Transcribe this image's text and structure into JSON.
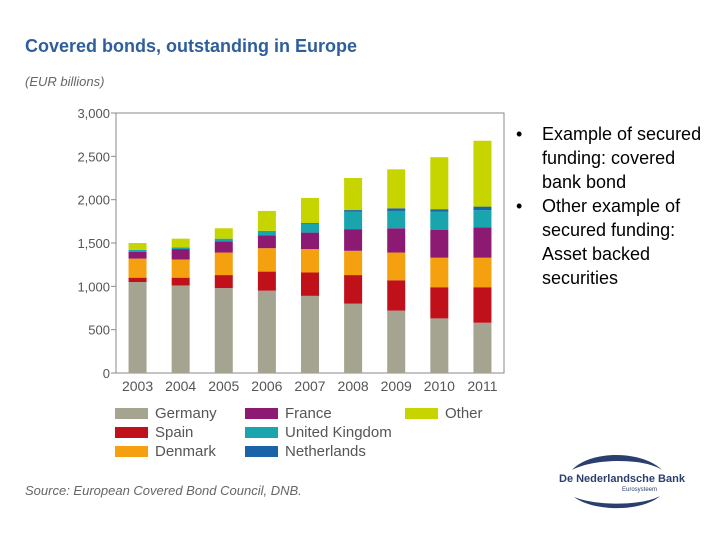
{
  "chart_data": {
    "type": "stacked-bar",
    "title": "Covered bonds, outstanding in Europe",
    "unit_label": "(EUR billions)",
    "categories": [
      "2003",
      "2004",
      "2005",
      "2006",
      "2007",
      "2008",
      "2009",
      "2010",
      "2011"
    ],
    "y_ticks": [
      "0",
      "500",
      "1,000",
      "1,500",
      "2,000",
      "2,500",
      "3,000"
    ],
    "ylim": [
      0,
      3000
    ],
    "series": [
      {
        "name": "Germany",
        "color": "#a5a491",
        "values": [
          1050,
          1010,
          980,
          950,
          890,
          800,
          720,
          630,
          580
        ]
      },
      {
        "name": "Spain",
        "color": "#c0111b",
        "values": [
          50,
          90,
          150,
          220,
          270,
          330,
          350,
          360,
          410
        ]
      },
      {
        "name": "Denmark",
        "color": "#f5a00e",
        "values": [
          220,
          210,
          260,
          270,
          270,
          280,
          320,
          340,
          340
        ]
      },
      {
        "name": "France",
        "color": "#8c1a73",
        "values": [
          80,
          120,
          130,
          150,
          190,
          250,
          280,
          320,
          350
        ]
      },
      {
        "name": "United Kingdom",
        "color": "#18a5ad",
        "values": [
          20,
          20,
          30,
          50,
          100,
          200,
          200,
          210,
          200
        ]
      },
      {
        "name": "Netherlands",
        "color": "#1a63a8",
        "values": [
          0,
          0,
          0,
          0,
          10,
          20,
          30,
          30,
          40
        ]
      },
      {
        "name": "Other",
        "color": "#c6d400",
        "values": [
          80,
          100,
          120,
          230,
          290,
          370,
          450,
          600,
          760
        ]
      }
    ],
    "legend_position": "bottom"
  },
  "source": "Source: European Covered Bond Council, DNB.",
  "bullets": [
    "Example of secured funding: covered bank bond",
    "Other example of secured funding: Asset backed securities"
  ],
  "bullet_symbol": "•",
  "logo": {
    "name": "De Nederlandsche Bank",
    "subtitle": "Eurosysteem"
  }
}
